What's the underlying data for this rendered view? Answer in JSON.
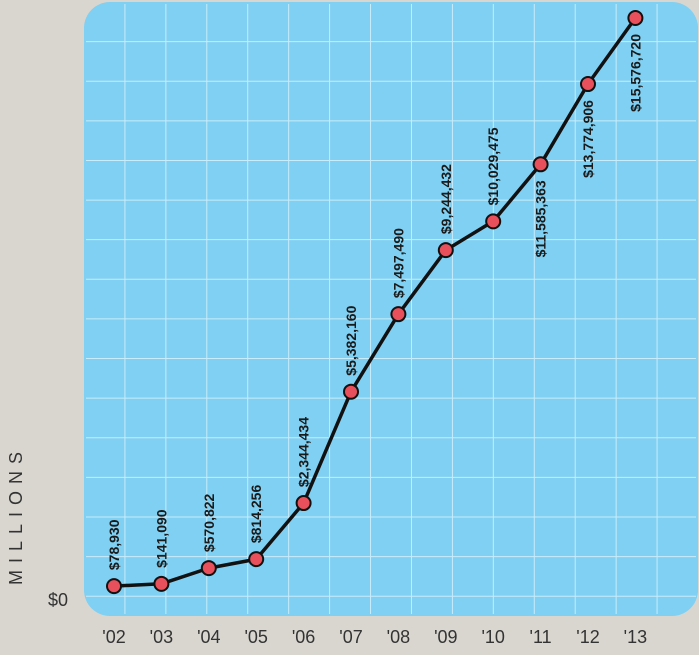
{
  "chart_data": {
    "type": "line",
    "ylabel": "MILLIONS",
    "y_zero_label": "$0",
    "x": [
      "'02",
      "'03",
      "'04",
      "'05",
      "'06",
      "'07",
      "'08",
      "'09",
      "'10",
      "'11",
      "'12",
      "'13"
    ],
    "values": [
      78930,
      141090,
      570822,
      814256,
      2344434,
      5382160,
      7497490,
      9244432,
      10029475,
      11585363,
      13774906,
      15576720
    ],
    "labels": [
      "$78,930",
      "$141,090",
      "$570,822",
      "$814,256",
      "$2,344,434",
      "$5,382,160",
      "$7,497,490",
      "$9,244,432",
      "$10,029,475",
      "$11,585,363",
      "$13,774,906",
      "$15,576,720"
    ],
    "ylim": [
      0,
      15576720
    ],
    "grid": true,
    "colors": {
      "background": "#d9d6d0",
      "plot": "#7fd0f2",
      "grid": "#c9ecfa",
      "line": "#111111",
      "marker": "#e8505b"
    }
  }
}
